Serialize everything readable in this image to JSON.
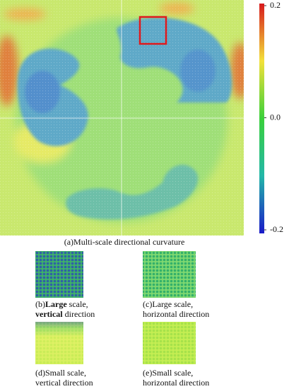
{
  "figure": {
    "caption": "(a)Multi-scale directional curvature",
    "colorbar": {
      "ticks": [
        0.2,
        {
          "value": 0,
          "label": "0.0"
        },
        -0.2
      ],
      "range": [
        -0.2,
        0.2
      ]
    },
    "panels": [
      {
        "lines": [
          [
            {
              "text": "(b)"
            },
            {
              "text": "Large",
              "bold": true
            },
            {
              "text": " scale,"
            }
          ],
          [
            {
              "text": "vertical",
              "bold": true
            },
            {
              "text": " direction"
            }
          ]
        ]
      },
      {
        "lines": [
          [
            {
              "text": "(c)Large scale,"
            }
          ],
          [
            {
              "text": "horizontal direction"
            }
          ]
        ]
      },
      {
        "lines": [
          [
            {
              "text": "(d)Small scale,"
            }
          ],
          [
            {
              "text": "vertical direction"
            }
          ]
        ]
      },
      {
        "lines": [
          [
            {
              "text": "(e)Small scale,"
            }
          ],
          [
            {
              "text": "horizontal direction"
            }
          ]
        ]
      }
    ]
  }
}
